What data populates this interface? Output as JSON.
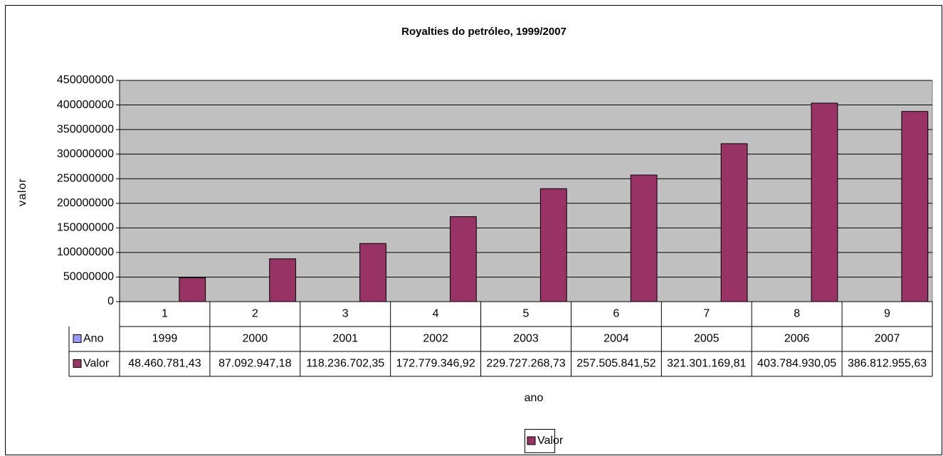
{
  "chart_data": {
    "type": "bar",
    "title": "Royalties do petróleo, 1999/2007",
    "ylabel": "valor",
    "xlabel": "ano",
    "categories": [
      "1",
      "2",
      "3",
      "4",
      "5",
      "6",
      "7",
      "8",
      "9"
    ],
    "series": [
      {
        "name": "Ano",
        "color": "#9999ff",
        "values": [
          1999,
          2000,
          2001,
          2002,
          2003,
          2004,
          2005,
          2006,
          2007
        ]
      },
      {
        "name": "Valor",
        "color": "#993366",
        "values": [
          48460781.43,
          87092947.18,
          118236702.35,
          172779346.92,
          229727268.73,
          257505841.52,
          321301169.81,
          403784930.05,
          386812955.63
        ],
        "value_labels": [
          "48.460.781,43",
          "87.092.947,18",
          "118.236.702,35",
          "172.779.346,92",
          "229.727.268,73",
          "257.505.841,52",
          "321.301.169,81",
          "403.784.930,05",
          "386.812.955,63"
        ]
      }
    ],
    "ylim": [
      0,
      450000000
    ],
    "yticks": [
      0,
      50000000,
      100000000,
      150000000,
      200000000,
      250000000,
      300000000,
      350000000,
      400000000,
      450000000
    ],
    "grid": true,
    "background": "#c0c0c0"
  }
}
